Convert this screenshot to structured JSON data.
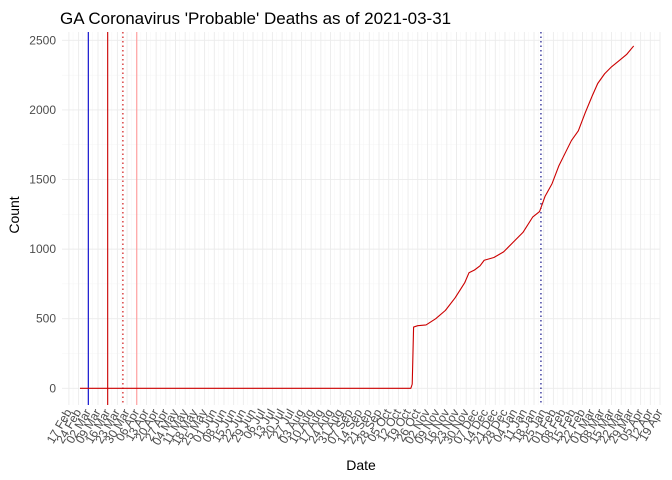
{
  "chart_data": {
    "type": "line",
    "title": "GA Coronavirus 'Probable' Deaths as of 2021-03-31",
    "xlabel": "Date",
    "ylabel": "Count",
    "xlim": [
      "2020-02-12",
      "2021-04-19"
    ],
    "ylim": [
      -120,
      2560
    ],
    "y_ticks": [
      0,
      500,
      1000,
      1500,
      2000,
      2500
    ],
    "x_tick_labels": [
      "17 Feb",
      "24 Feb",
      "02 Mar",
      "09 Mar",
      "16 Mar",
      "23 Mar",
      "30 Mar",
      "06 Apr",
      "13 Apr",
      "20 Apr",
      "27 Apr",
      "04 May",
      "11 May",
      "18 May",
      "25 May",
      "01 Jun",
      "08 Jun",
      "15 Jun",
      "22 Jun",
      "29 Jun",
      "06 Jul",
      "13 Jul",
      "20 Jul",
      "27 Jul",
      "03 Aug",
      "10 Aug",
      "17 Aug",
      "24 Aug",
      "31 Aug",
      "07 Sep",
      "14 Sep",
      "21 Sep",
      "28 Sep",
      "05 Oct",
      "12 Oct",
      "19 Oct",
      "26 Oct",
      "02 Nov",
      "09 Nov",
      "16 Nov",
      "23 Nov",
      "30 Nov",
      "07 Dec",
      "14 Dec",
      "21 Dec",
      "28 Dec",
      "04 Jan",
      "11 Jan",
      "18 Jan",
      "25 Jan",
      "01 Feb",
      "08 Feb",
      "15 Feb",
      "22 Feb",
      "01 Mar",
      "08 Mar",
      "15 Mar",
      "22 Mar",
      "29 Mar",
      "05 Apr",
      "12 Apr",
      "19 Apr"
    ],
    "x_tick_start": "2020-02-17",
    "x_tick_step_days": 7,
    "grid": true,
    "series": [
      {
        "color": "#cc0000",
        "points": [
          [
            "2020-02-25",
            0
          ],
          [
            "2020-10-21",
            0
          ],
          [
            "2020-10-22",
            30
          ],
          [
            "2020-10-23",
            440
          ],
          [
            "2020-10-26",
            450
          ],
          [
            "2020-11-01",
            455
          ],
          [
            "2020-11-08",
            500
          ],
          [
            "2020-11-15",
            560
          ],
          [
            "2020-11-22",
            650
          ],
          [
            "2020-11-29",
            760
          ],
          [
            "2020-12-02",
            830
          ],
          [
            "2020-12-06",
            850
          ],
          [
            "2020-12-10",
            880
          ],
          [
            "2020-12-13",
            920
          ],
          [
            "2020-12-20",
            940
          ],
          [
            "2020-12-27",
            980
          ],
          [
            "2021-01-03",
            1050
          ],
          [
            "2021-01-10",
            1120
          ],
          [
            "2021-01-17",
            1230
          ],
          [
            "2021-01-22",
            1270
          ],
          [
            "2021-01-26",
            1380
          ],
          [
            "2021-01-31",
            1470
          ],
          [
            "2021-02-05",
            1600
          ],
          [
            "2021-02-10",
            1700
          ],
          [
            "2021-02-14",
            1780
          ],
          [
            "2021-02-19",
            1850
          ],
          [
            "2021-02-24",
            1980
          ],
          [
            "2021-03-01",
            2100
          ],
          [
            "2021-03-05",
            2190
          ],
          [
            "2021-03-10",
            2260
          ],
          [
            "2021-03-15",
            2310
          ],
          [
            "2021-03-20",
            2350
          ],
          [
            "2021-03-26",
            2400
          ],
          [
            "2021-03-31",
            2460
          ]
        ]
      }
    ],
    "vlines": [
      {
        "date": "2020-03-02",
        "color": "#0000cc",
        "style": "solid"
      },
      {
        "date": "2020-03-16",
        "color": "#cc0000",
        "style": "solid"
      },
      {
        "date": "2020-03-27",
        "color": "#cc0000",
        "style": "dotted"
      },
      {
        "date": "2020-04-06",
        "color": "#ff9999",
        "style": "solid"
      },
      {
        "date": "2021-01-23",
        "color": "#000080",
        "style": "dotted"
      }
    ]
  }
}
